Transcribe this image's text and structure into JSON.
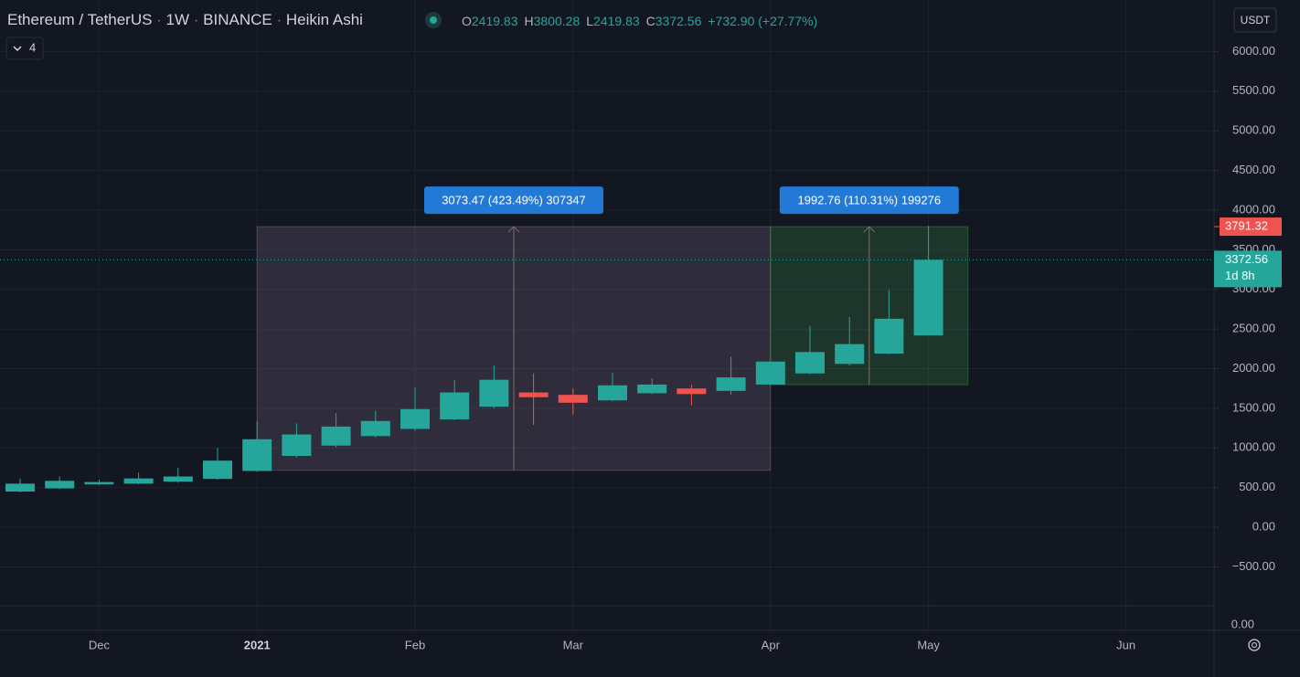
{
  "chart_data": {
    "type": "candlestick",
    "symbol": "Ethereum / TetherUS",
    "interval": "1W",
    "exchange": "BINANCE",
    "style": "Heikin Ashi",
    "indicator_count": "4",
    "currency": "USDT",
    "ohlc": {
      "open_label": "O",
      "open": 2419.83,
      "high_label": "H",
      "high": 3800.28,
      "low_label": "L",
      "low": 2419.83,
      "close_label": "C",
      "close": 3372.56,
      "change": "+732.90 (+27.77%)"
    },
    "up_color": "#26a69a",
    "down_color": "#ef5350",
    "series": [
      {
        "open": [
          450,
          490,
          540,
          550,
          575,
          610,
          710,
          900,
          1030,
          1150,
          1240,
          1360,
          1520,
          1700,
          1670,
          1600,
          1690,
          1750,
          1720,
          1800,
          1940,
          2060,
          2190,
          2419.83
        ],
        "high": [
          615,
          640,
          600,
          690,
          750,
          1000,
          1340,
          1310,
          1440,
          1470,
          1760,
          1860,
          2040,
          1940,
          1750,
          1950,
          1880,
          1800,
          2150,
          2100,
          2540,
          2650,
          2990,
          3800.28
        ],
        "low": [
          440,
          480,
          530,
          540,
          560,
          600,
          700,
          880,
          1010,
          1130,
          1220,
          1350,
          1500,
          1290,
          1420,
          1590,
          1680,
          1540,
          1670,
          1790,
          1930,
          2040,
          2180,
          2419.83
        ],
        "close": [
          550,
          585,
          570,
          615,
          640,
          840,
          1110,
          1170,
          1270,
          1340,
          1490,
          1700,
          1860,
          1640,
          1570,
          1790,
          1800,
          1680,
          1890,
          2090,
          2210,
          2310,
          2630,
          3372.56
        ]
      }
    ],
    "measures": [
      {
        "label": "3073.47 (423.49%) 307347",
        "low": 717.85,
        "high": 3791.32,
        "from": 6,
        "to": 19,
        "color": "#9e82a0"
      },
      {
        "label": "1992.76 (110.31%) 199276",
        "low": 1798.56,
        "high": 3791.32,
        "from": 19,
        "to": 24,
        "color": "#4caf50"
      }
    ],
    "high_line": 3791.32,
    "countdown": "1d 8h",
    "ylim": [
      -990,
      6650
    ],
    "yticks": [
      {
        "value": -500,
        "label": "−500.00"
      },
      {
        "value": 0,
        "label": "0.00"
      },
      {
        "value": 500,
        "label": "500.00"
      },
      {
        "value": 1000,
        "label": "1000.00"
      },
      {
        "value": 1500,
        "label": "1500.00"
      },
      {
        "value": 2000,
        "label": "2000.00"
      },
      {
        "value": 2500,
        "label": "2500.00"
      },
      {
        "value": 3000,
        "label": "3000.00"
      },
      {
        "value": 3500,
        "label": "3500.00"
      },
      {
        "value": 4000,
        "label": "4000.00"
      },
      {
        "value": 4500,
        "label": "4500.00"
      },
      {
        "value": 5000,
        "label": "5000.00"
      },
      {
        "value": 5500,
        "label": "5500.00"
      },
      {
        "value": 6000,
        "label": "6000.00"
      }
    ],
    "pane_label": "0.00",
    "xticks": [
      {
        "value": 2,
        "label": "Dec"
      },
      {
        "value": 6,
        "label": "2021"
      },
      {
        "value": 10,
        "label": "Feb"
      },
      {
        "value": 14,
        "label": "Mar"
      },
      {
        "value": 19,
        "label": "Apr"
      },
      {
        "value": 23,
        "label": "May"
      },
      {
        "value": 28,
        "label": "Jun"
      }
    ],
    "grid": true
  }
}
